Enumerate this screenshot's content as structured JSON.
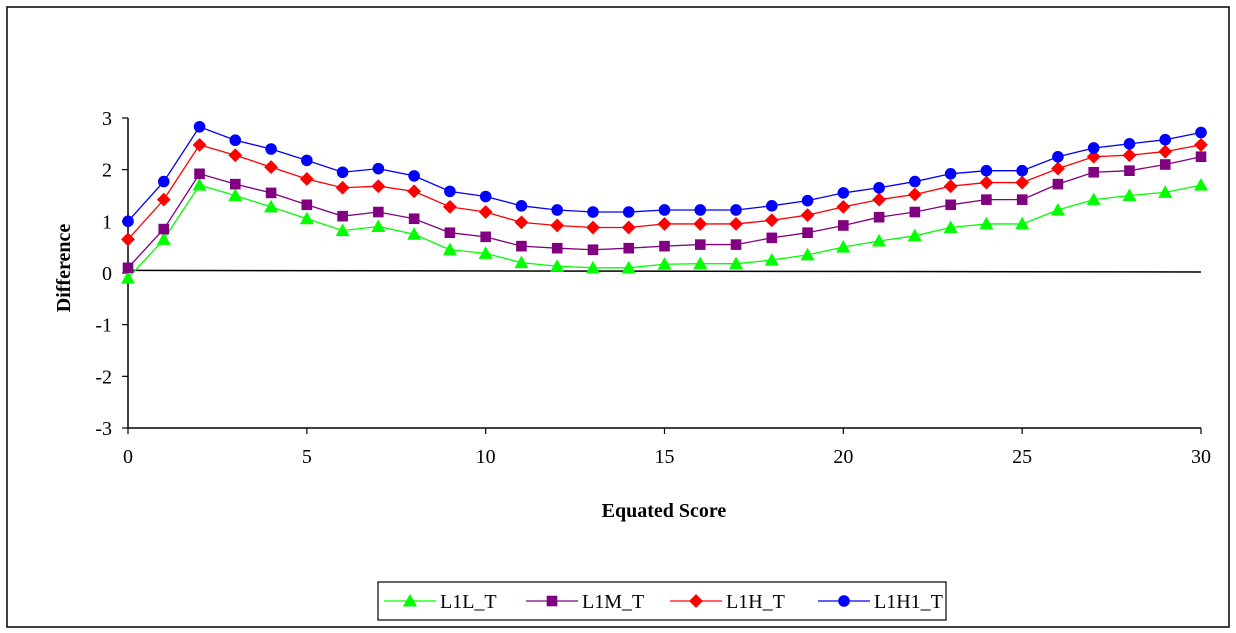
{
  "chart_data": {
    "type": "line",
    "xlabel": "Equated Score",
    "ylabel": "Difference",
    "xlim": [
      0,
      30
    ],
    "ylim": [
      -3,
      3
    ],
    "x_ticks": [
      0,
      5,
      10,
      15,
      20,
      25,
      30
    ],
    "y_ticks": [
      -3,
      -2,
      -1,
      0,
      1,
      2,
      3
    ],
    "x_tick_labels": [
      "0",
      "5",
      "10",
      "15",
      "20",
      "25",
      "30"
    ],
    "y_tick_labels": [
      "-3",
      "-2",
      "-1",
      "0",
      "1",
      "2",
      "3"
    ],
    "grid": false,
    "legend_position": "bottom",
    "reference_line": {
      "y_start": 0.05,
      "y_end": 0.02
    },
    "x": [
      0,
      1,
      2,
      3,
      4,
      5,
      6,
      7,
      8,
      9,
      10,
      11,
      12,
      13,
      14,
      15,
      16,
      17,
      18,
      19,
      20,
      21,
      22,
      23,
      24,
      25,
      26,
      27,
      28,
      29,
      30
    ],
    "series": [
      {
        "name": "L1L_T",
        "color": "#00ff00",
        "marker": "triangle",
        "values": [
          -0.1,
          0.65,
          1.7,
          1.5,
          1.28,
          1.05,
          0.82,
          0.9,
          0.75,
          0.45,
          0.38,
          0.2,
          0.13,
          0.1,
          0.1,
          0.17,
          0.18,
          0.18,
          0.25,
          0.35,
          0.5,
          0.62,
          0.72,
          0.88,
          0.95,
          0.95,
          1.22,
          1.42,
          1.5,
          1.56,
          1.7
        ]
      },
      {
        "name": "L1M_T",
        "color": "#800080",
        "marker": "square",
        "values": [
          0.1,
          0.85,
          1.92,
          1.72,
          1.55,
          1.32,
          1.1,
          1.18,
          1.05,
          0.78,
          0.7,
          0.52,
          0.48,
          0.45,
          0.48,
          0.52,
          0.55,
          0.55,
          0.68,
          0.78,
          0.92,
          1.08,
          1.18,
          1.32,
          1.42,
          1.42,
          1.72,
          1.95,
          1.98,
          2.1,
          2.25
        ]
      },
      {
        "name": "L1H_T",
        "color": "#ff0000",
        "marker": "diamond",
        "values": [
          0.65,
          1.42,
          2.48,
          2.28,
          2.05,
          1.82,
          1.65,
          1.68,
          1.58,
          1.28,
          1.18,
          0.98,
          0.92,
          0.88,
          0.88,
          0.95,
          0.95,
          0.95,
          1.02,
          1.12,
          1.28,
          1.42,
          1.52,
          1.68,
          1.75,
          1.75,
          2.02,
          2.25,
          2.28,
          2.35,
          2.48
        ]
      },
      {
        "name": "L1H1_T",
        "color": "#0000ff",
        "marker": "circle",
        "values": [
          1.0,
          1.77,
          2.83,
          2.57,
          2.4,
          2.18,
          1.95,
          2.02,
          1.88,
          1.58,
          1.48,
          1.3,
          1.22,
          1.18,
          1.18,
          1.22,
          1.22,
          1.22,
          1.3,
          1.4,
          1.55,
          1.65,
          1.77,
          1.92,
          1.98,
          1.98,
          2.25,
          2.42,
          2.5,
          2.58,
          2.72
        ]
      }
    ]
  }
}
